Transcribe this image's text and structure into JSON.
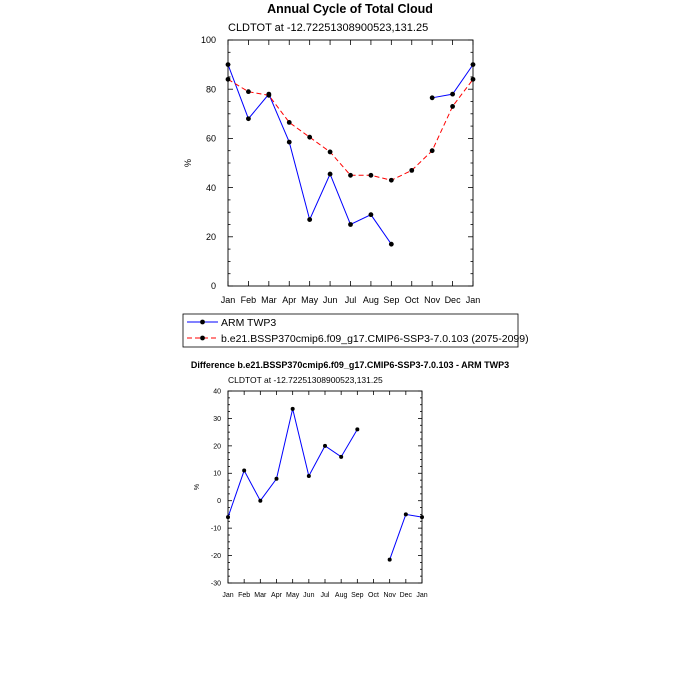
{
  "chart_data": [
    {
      "type": "line",
      "title": "Annual Cycle of Total Cloud",
      "subtitle": "CLDTOT at -12.72251308900523,131.25",
      "ylabel": "%",
      "xlabel": "",
      "categories": [
        "Jan",
        "Feb",
        "Mar",
        "Apr",
        "May",
        "Jun",
        "Jul",
        "Aug",
        "Sep",
        "Oct",
        "Nov",
        "Dec",
        "Jan"
      ],
      "ylim": [
        0,
        100
      ],
      "yticks": [
        0,
        20,
        40,
        60,
        80,
        100
      ],
      "series": [
        {
          "name": "ARM TWP3",
          "color": "#0000ff",
          "dash": "solid",
          "values": [
            90,
            68,
            78,
            58.5,
            27,
            45.5,
            25,
            29,
            17,
            null,
            76.5,
            78,
            90
          ]
        },
        {
          "name": "b.e21.BSSP370cmip6.f09_g17.CMIP6-SSP3-7.0.103 (2075-2099)",
          "color": "#ff0000",
          "dash": "dashed",
          "values": [
            84,
            79,
            77.5,
            66.5,
            60.5,
            54.5,
            45,
            45,
            43,
            47,
            55,
            73,
            84
          ]
        }
      ],
      "legend_position": "bottom"
    },
    {
      "type": "line",
      "title": "Difference b.e21.BSSP370cmip6.f09_g17.CMIP6-SSP3-7.0.103 - ARM TWP3",
      "subtitle": "CLDTOT at -12.72251308900523,131.25",
      "ylabel": "%",
      "xlabel": "",
      "categories": [
        "Jan",
        "Feb",
        "Mar",
        "Apr",
        "May",
        "Jun",
        "Jul",
        "Aug",
        "Sep",
        "Oct",
        "Nov",
        "Dec",
        "Jan"
      ],
      "ylim": [
        -30,
        40
      ],
      "yticks": [
        -30,
        -20,
        -10,
        0,
        10,
        20,
        30,
        40
      ],
      "series": [
        {
          "color": "#0000ff",
          "dash": "solid",
          "values": [
            -6,
            11,
            0,
            8,
            33.5,
            9,
            20,
            16,
            26,
            null,
            -21.5,
            -5,
            -6
          ]
        }
      ]
    }
  ]
}
